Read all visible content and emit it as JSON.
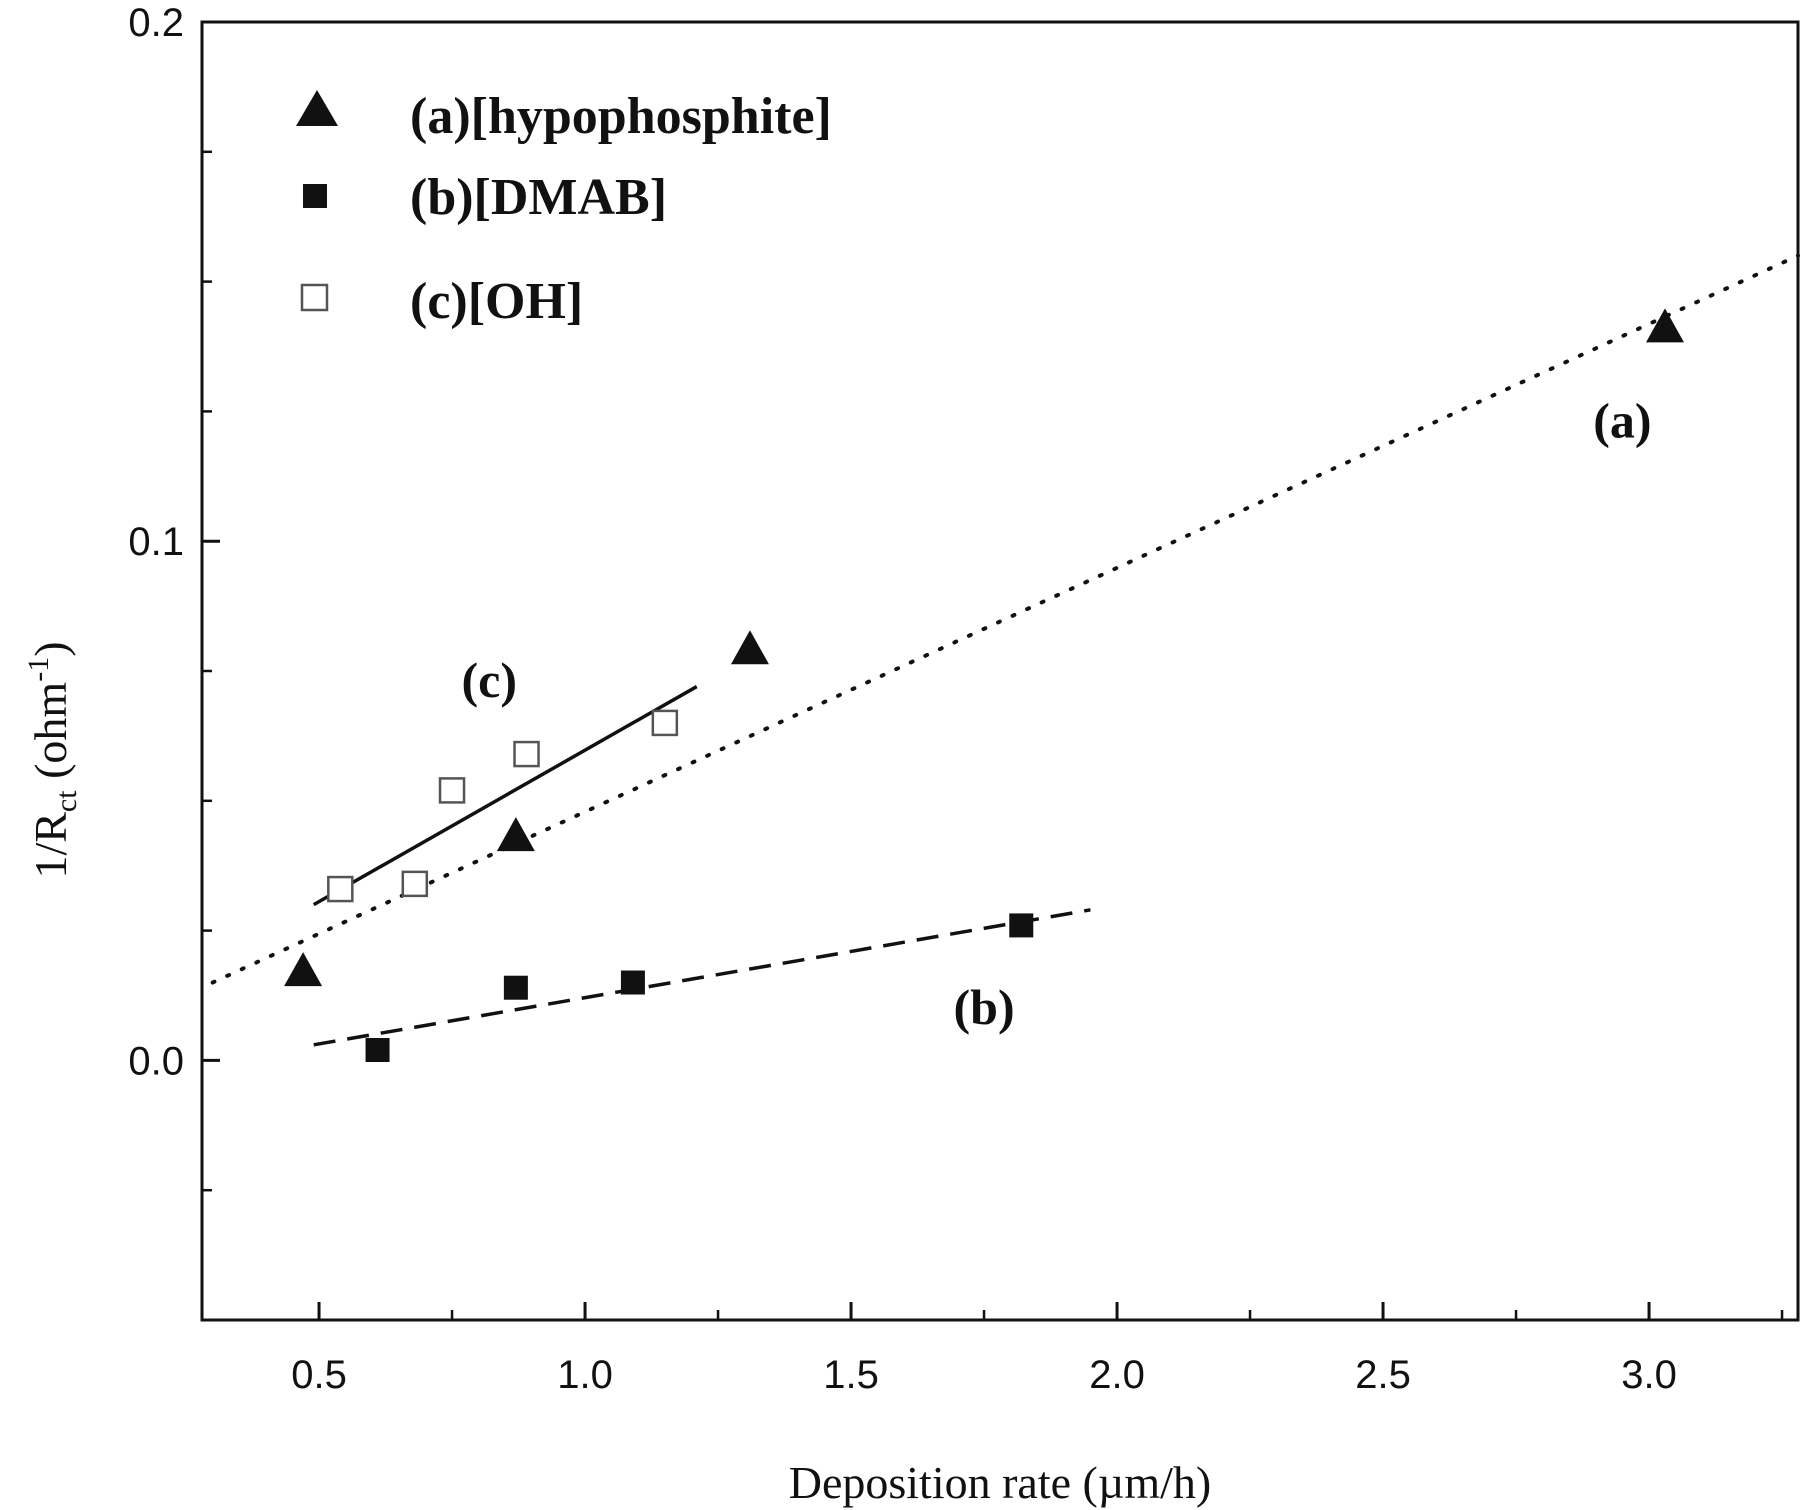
{
  "chart_data": {
    "type": "scatter",
    "xlabel": "Deposition rate (µm/h)",
    "ylabel_main": "1/R",
    "ylabel_sub": "ct",
    "ylabel_unit_open": " (ohm",
    "ylabel_unit_sup": "-1",
    "ylabel_unit_close": ")",
    "xlim": [
      0.28,
      3.28
    ],
    "ylim": [
      -0.05,
      0.2
    ],
    "x_ticks": [
      0.5,
      1.0,
      1.5,
      2.0,
      2.5,
      3.0
    ],
    "x_tick_labels": [
      "0.5",
      "1.0",
      "1.5",
      "2.0",
      "2.5",
      "3.0"
    ],
    "y_ticks": [
      0.0,
      0.1,
      0.2
    ],
    "y_tick_labels": [
      "0.0",
      "0.1",
      "0.2"
    ],
    "legend_position": "top-left",
    "series": [
      {
        "name": "(a)[hypophosphite]",
        "marker": "filled-triangle",
        "points": [
          [
            0.47,
            0.017
          ],
          [
            0.87,
            0.043
          ],
          [
            1.31,
            0.079
          ],
          [
            3.03,
            0.141
          ]
        ],
        "fit": {
          "style": "dotted",
          "x": [
            0.3,
            3.28
          ],
          "y": [
            0.015,
            0.155
          ]
        },
        "annotation": {
          "text": "(a)",
          "x": 2.95,
          "y": 0.12
        }
      },
      {
        "name": "(b)[DMAB]",
        "marker": "filled-square",
        "points": [
          [
            0.61,
            0.002
          ],
          [
            0.87,
            0.014
          ],
          [
            1.09,
            0.015
          ],
          [
            1.82,
            0.026
          ]
        ],
        "fit": {
          "style": "dashed",
          "x": [
            0.49,
            1.95
          ],
          "y": [
            0.003,
            0.029
          ]
        },
        "annotation": {
          "text": "(b)",
          "x": 1.75,
          "y": 0.007
        }
      },
      {
        "name": "(c)[OH]",
        "marker": "open-square",
        "points": [
          [
            0.54,
            0.033
          ],
          [
            0.68,
            0.034
          ],
          [
            0.75,
            0.052
          ],
          [
            0.89,
            0.059
          ],
          [
            1.15,
            0.065
          ]
        ],
        "fit": {
          "style": "solid",
          "x": [
            0.49,
            1.21
          ],
          "y": [
            0.03,
            0.072
          ]
        },
        "annotation": {
          "text": "(c)",
          "x": 0.82,
          "y": 0.07
        }
      }
    ]
  }
}
